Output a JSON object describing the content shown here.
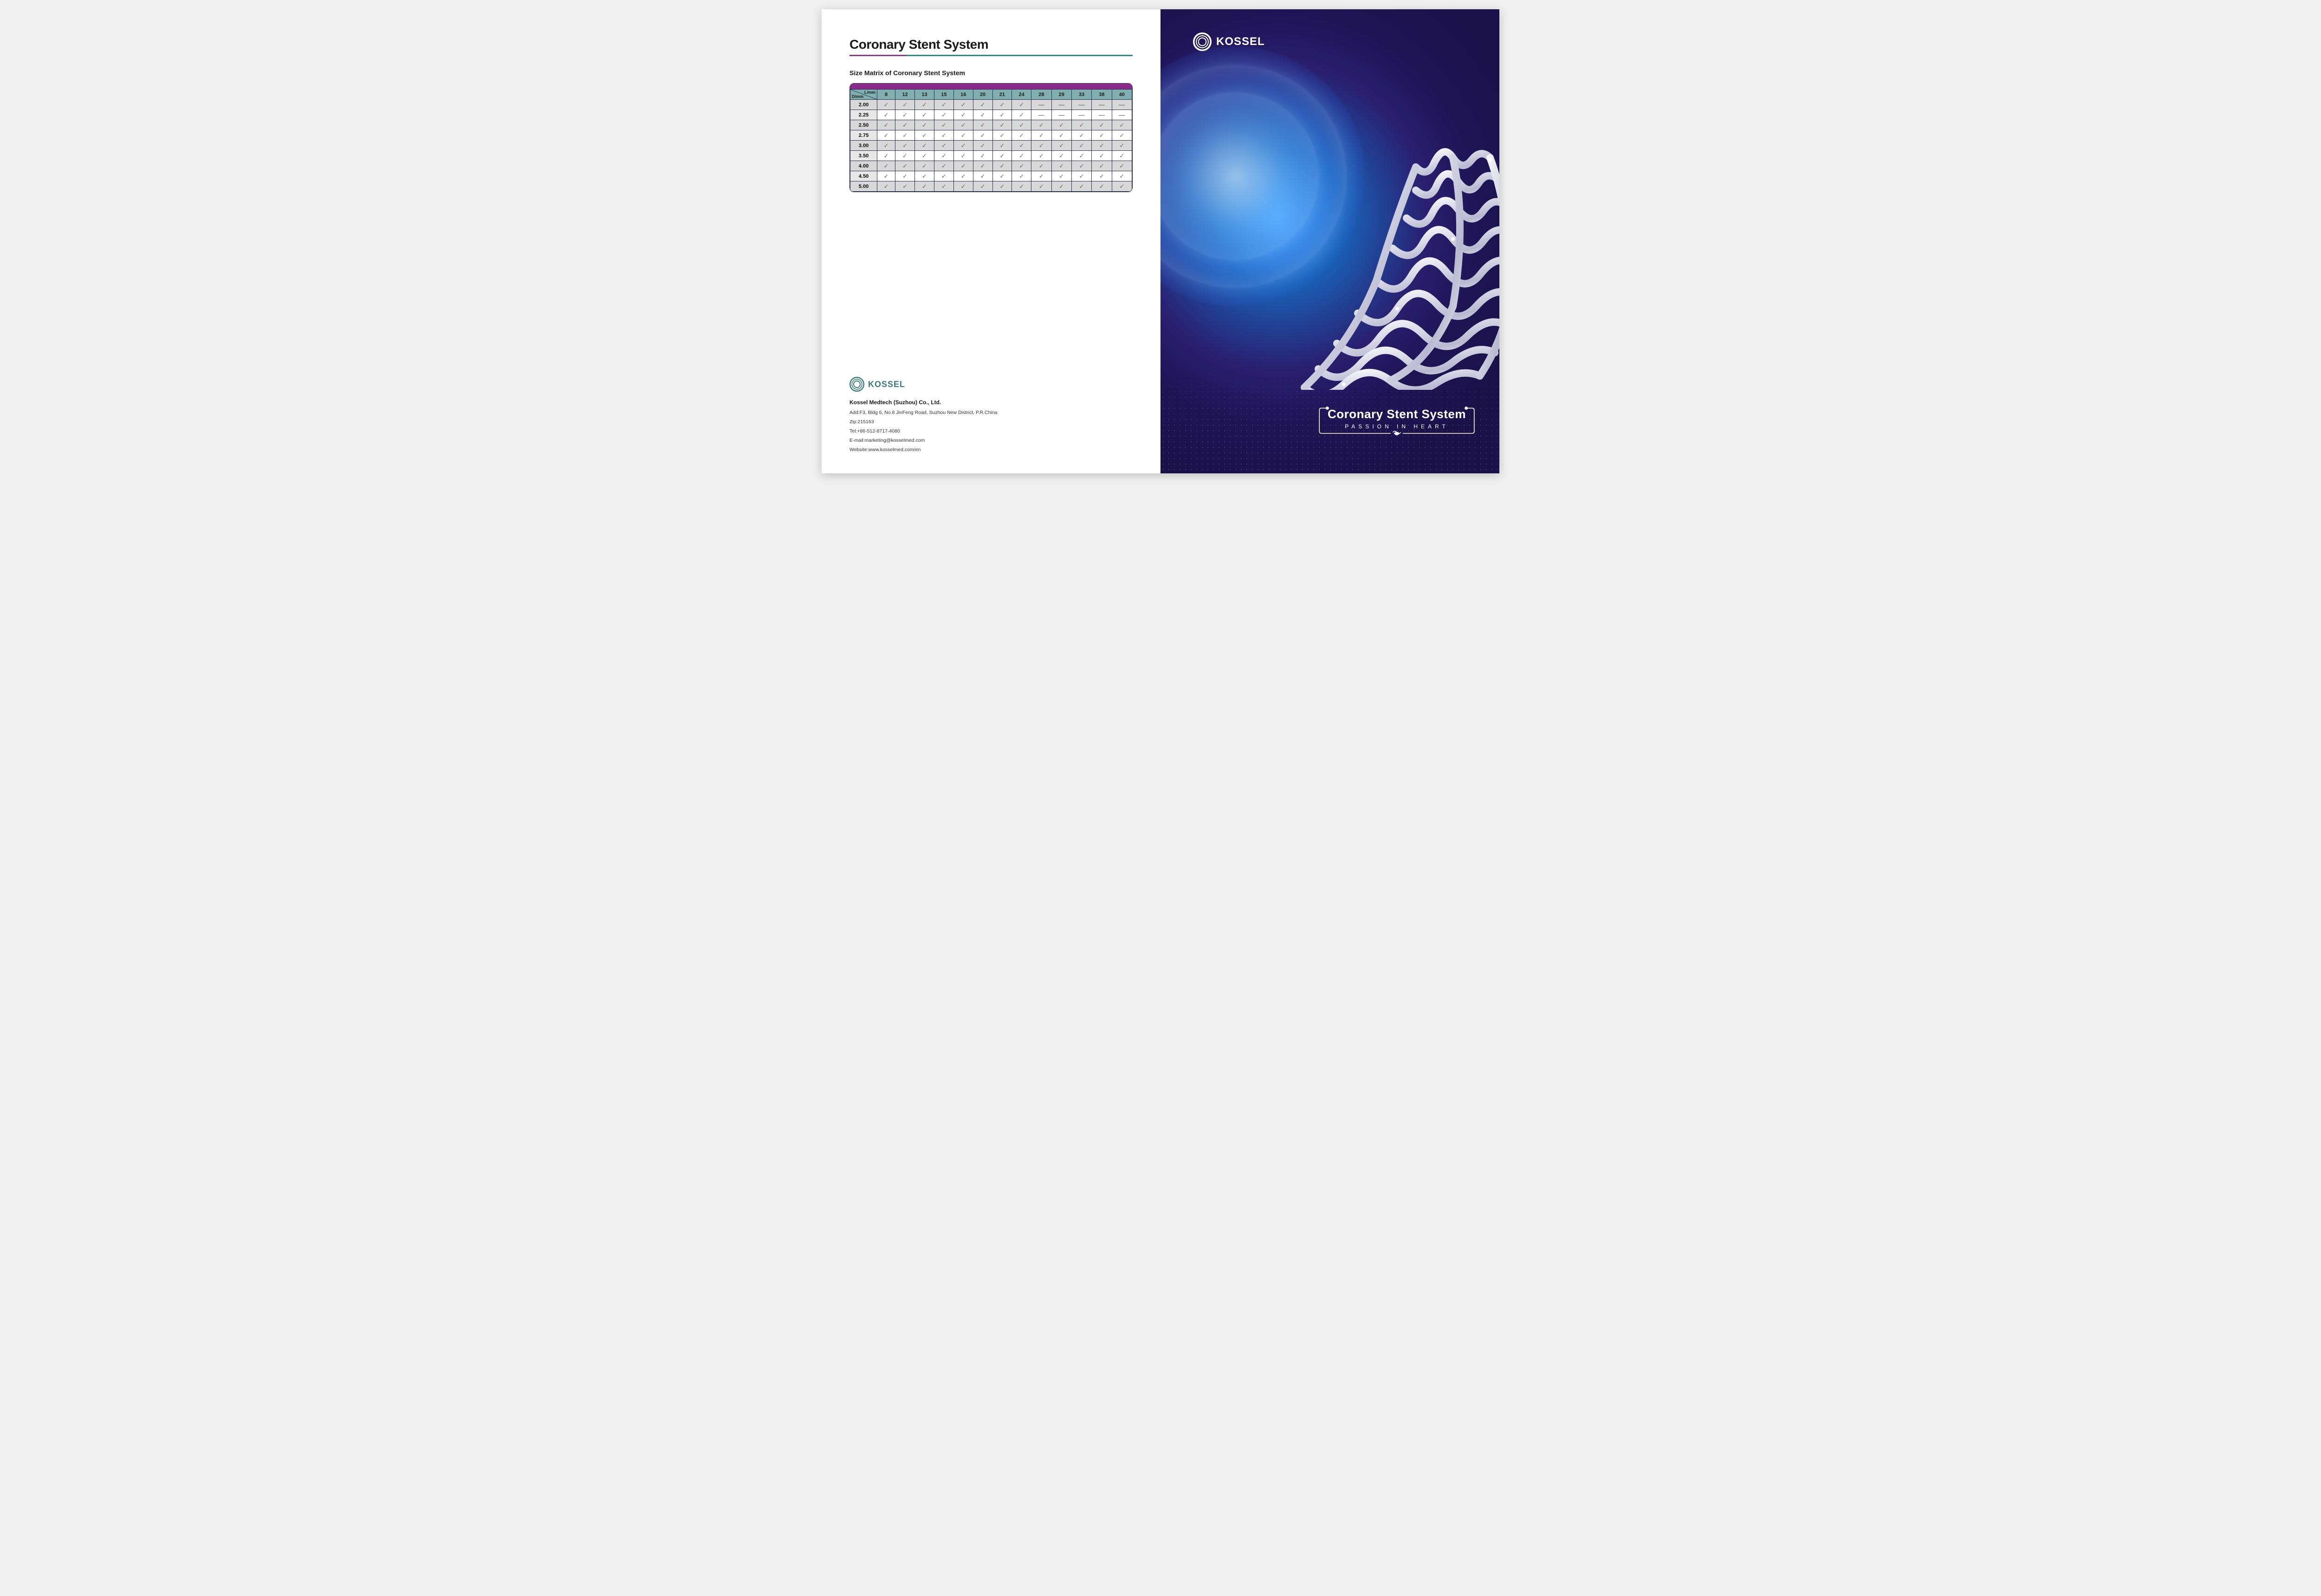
{
  "left": {
    "title": "Coronary Stent System",
    "subtitle": "Size Matrix of Coronary Stent System",
    "corner_top": "L/mm",
    "corner_bottom": "D/mm",
    "lengths": [
      "8",
      "12",
      "13",
      "15",
      "16",
      "20",
      "21",
      "24",
      "28",
      "29",
      "33",
      "38",
      "40"
    ],
    "diameters": [
      "2.00",
      "2.25",
      "2.50",
      "2.75",
      "3.00",
      "3.50",
      "4.00",
      "4.50",
      "5.00"
    ],
    "matrix": [
      [
        1,
        1,
        1,
        1,
        1,
        1,
        1,
        1,
        0,
        0,
        0,
        0,
        0
      ],
      [
        1,
        1,
        1,
        1,
        1,
        1,
        1,
        1,
        0,
        0,
        0,
        0,
        0
      ],
      [
        1,
        1,
        1,
        1,
        1,
        1,
        1,
        1,
        1,
        1,
        1,
        1,
        1
      ],
      [
        1,
        1,
        1,
        1,
        1,
        1,
        1,
        1,
        1,
        1,
        1,
        1,
        1
      ],
      [
        1,
        1,
        1,
        1,
        1,
        1,
        1,
        1,
        1,
        1,
        1,
        1,
        1
      ],
      [
        1,
        1,
        1,
        1,
        1,
        1,
        1,
        1,
        1,
        1,
        1,
        1,
        1
      ],
      [
        1,
        1,
        1,
        1,
        1,
        1,
        1,
        1,
        1,
        1,
        1,
        1,
        1
      ],
      [
        1,
        1,
        1,
        1,
        1,
        1,
        1,
        1,
        1,
        1,
        1,
        1,
        1
      ],
      [
        1,
        1,
        1,
        1,
        1,
        1,
        1,
        1,
        1,
        1,
        1,
        1,
        1
      ]
    ],
    "colors": {
      "header_bg": "#7fafaf",
      "row_alt_bg": "#d8d8d8",
      "row_bg": "#e8e8e8",
      "border": "#2a3050",
      "topbar": "#8b2a8b",
      "check": "#666666",
      "dash": "#444444",
      "underline_left": "#8b3a8b",
      "underline_right": "#2a8b8b"
    },
    "logo_text": "KOSSEL",
    "company": "Kossel Medtech (Suzhou) Co., Ltd.",
    "address": "Add:F3, Bldg 6, No.8 JinFeng Road, Suzhou New District, P.R.China",
    "zip": "Zip:215163",
    "tel": "Tel:+86-512-8717-4080",
    "email": "E-mail:marketing@kosselmed.com",
    "website": "Website:www.kosselmed.com/en"
  },
  "right": {
    "logo_text": "KOSSEL",
    "product_title": "Coronary Stent System",
    "product_subtitle": "PASSION IN HEART",
    "colors": {
      "bg_inner": "#4aa8ff",
      "bg_mid": "#2a1e6e",
      "bg_outer": "#1a1148",
      "text": "#ffffff",
      "stent": "#e8e8f0"
    }
  }
}
